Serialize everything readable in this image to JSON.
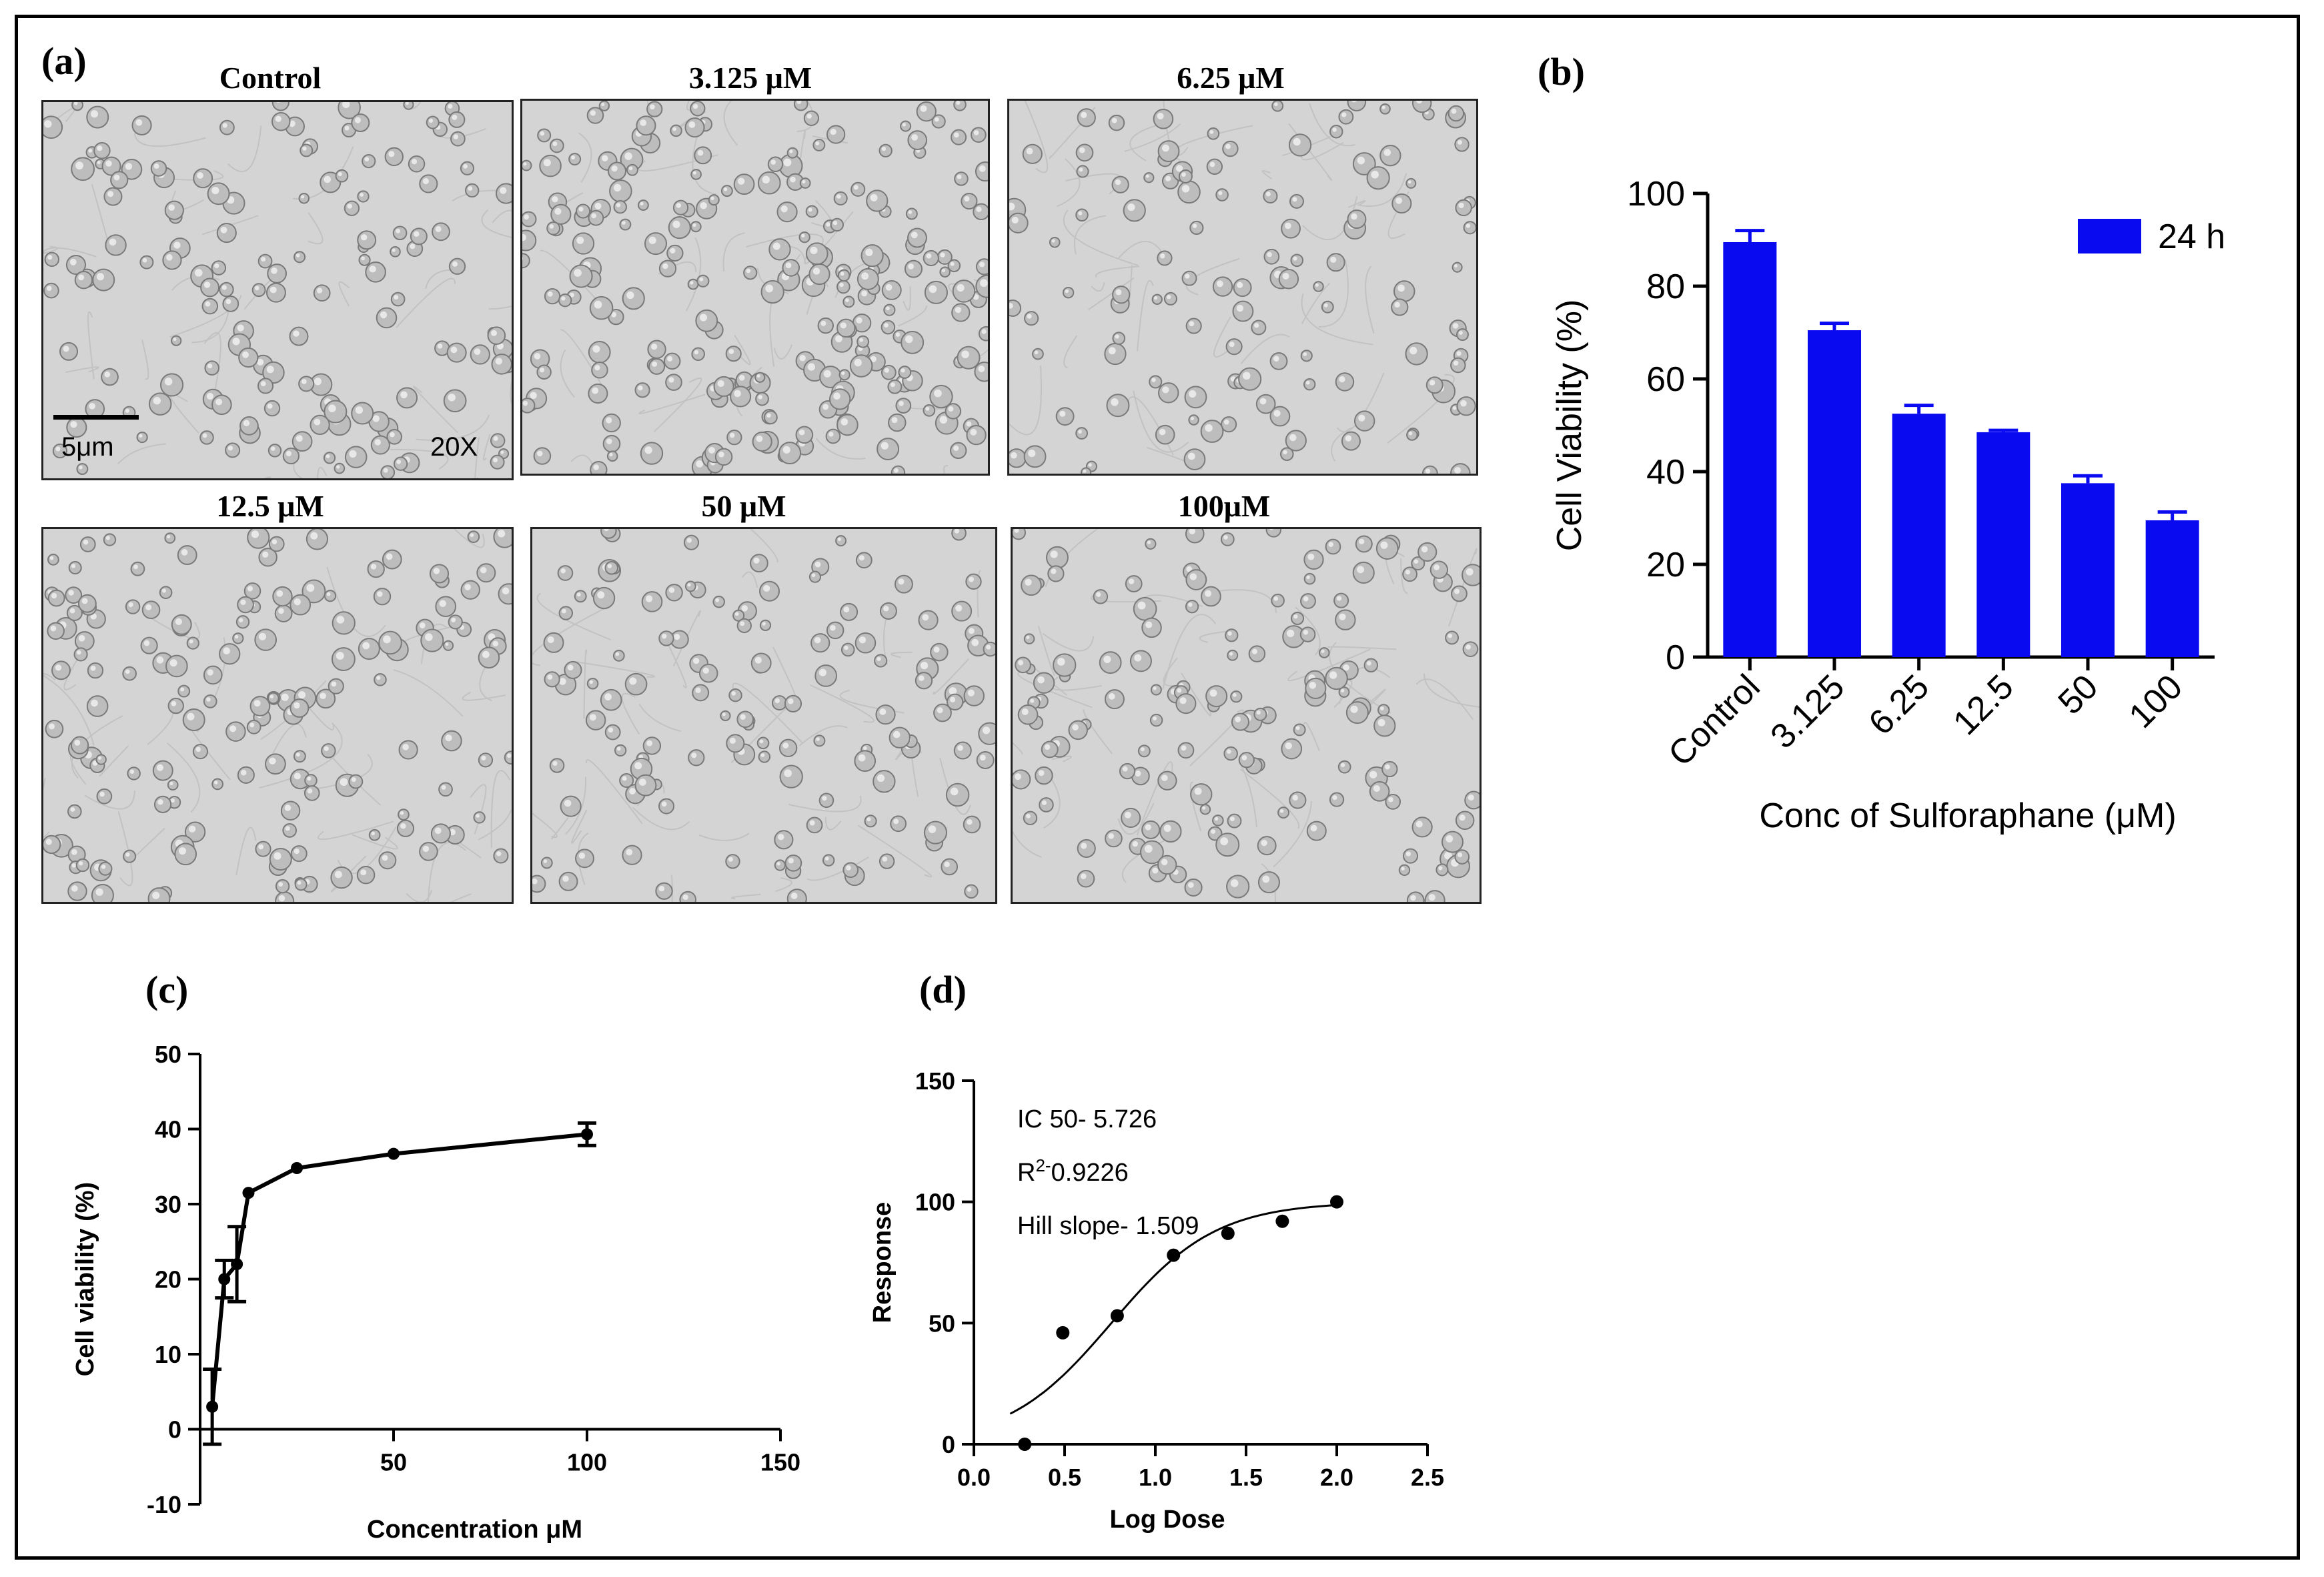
{
  "figure": {
    "panel_a": {
      "letter": "(a)",
      "images": [
        {
          "title": "Control",
          "density": 0.55,
          "seed": 11
        },
        {
          "title": "3.125 μM",
          "density": 0.85,
          "seed": 23
        },
        {
          "title": "6.25 μM",
          "density": 0.45,
          "seed": 37
        },
        {
          "title": "12.5 μM",
          "density": 0.6,
          "seed": 41
        },
        {
          "title": "50 μM",
          "density": 0.5,
          "seed": 53
        },
        {
          "title": "100μM",
          "density": 0.55,
          "seed": 67
        }
      ],
      "scale_bar_label": "5μm",
      "magnification": "20X"
    },
    "panel_b": {
      "letter": "(b)"
    },
    "panel_c": {
      "letter": "(c)"
    },
    "panel_d": {
      "letter": "(d)"
    }
  },
  "chart_data": [
    {
      "id": "b",
      "type": "bar",
      "categories": [
        "Control",
        "3.125",
        "6.25",
        "12.5",
        "50",
        "100"
      ],
      "series": [
        {
          "name": "24 h",
          "values": [
            89.5,
            70.5,
            52.5,
            48.5,
            37.5,
            29.5
          ],
          "errors": [
            2.5,
            1.5,
            1.8,
            0.4,
            1.6,
            1.8
          ]
        }
      ],
      "ylabel": "Cell Viability (%)",
      "xlabel": "Conc of Sulforaphane (μM)",
      "ylim": [
        0,
        100
      ],
      "yticks": [
        0,
        20,
        40,
        60,
        80,
        100
      ],
      "legend": "top-right",
      "color": "#0a0af0"
    },
    {
      "id": "c",
      "type": "line",
      "x": [
        3.125,
        6.25,
        9.5,
        12.5,
        25,
        50,
        100
      ],
      "y": [
        3,
        20,
        22,
        31.5,
        34.8,
        36.7,
        39.3
      ],
      "errors": [
        5,
        2.5,
        5,
        0,
        0,
        0,
        1.5
      ],
      "ylabel": "Cell viability (%)",
      "xlabel": "Concentration   μM",
      "xlim": [
        0,
        150
      ],
      "ylim": [
        -10,
        50
      ],
      "xticks": [
        50,
        100,
        150
      ],
      "yticks": [
        -10,
        0,
        10,
        20,
        30,
        40,
        50
      ]
    },
    {
      "id": "d",
      "type": "scatter",
      "x": [
        0.28,
        0.49,
        0.79,
        1.1,
        1.4,
        1.7,
        2.0
      ],
      "y": [
        0,
        46,
        53,
        78,
        87,
        92,
        100
      ],
      "fit": {
        "model": "sigmoid",
        "log_ic50": 0.758,
        "hill": 1.509,
        "bottom": 0,
        "top": 100,
        "x_range": [
          0.2,
          2.0
        ]
      },
      "annotations": [
        "IC 50- 5.726",
        "R",
        "2-",
        "0.9226",
        "Hill slope- 1.509"
      ],
      "ylabel": "Response",
      "xlabel": "Log Dose",
      "xlim": [
        0,
        2.5
      ],
      "ylim": [
        0,
        150
      ],
      "xticks": [
        "0.0",
        "0.5",
        "1.0",
        "1.5",
        "2.0",
        "2.5"
      ],
      "yticks": [
        0,
        50,
        100,
        150
      ]
    }
  ]
}
